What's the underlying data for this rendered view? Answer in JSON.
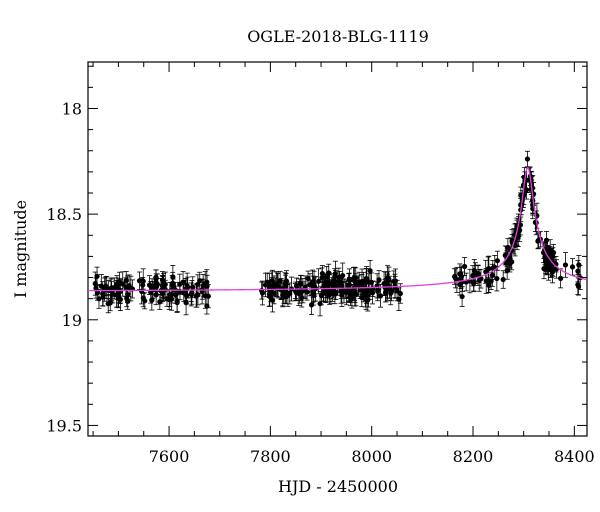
{
  "chart_data": {
    "type": "scatter",
    "title": "OGLE-2018-BLG-1119",
    "xlabel": "HJD - 2450000",
    "ylabel": "I magnitude",
    "xlim": [
      7440,
      8425
    ],
    "ylim": [
      19.55,
      17.78
    ],
    "y_inverted": true,
    "grid": false,
    "x_ticks": [
      "7600",
      "7800",
      "8000",
      "8200",
      "8400"
    ],
    "y_ticks": [
      "18",
      "18.5",
      "19",
      "19.5"
    ],
    "point_color": "#000000",
    "model_color": "#e040e0",
    "model": {
      "baseline": 18.87,
      "peak_time": 8308,
      "peak_mag": 18.28,
      "tau": 28
    },
    "season_ranges": [
      [
        7453,
        7680
      ],
      [
        7782,
        8058
      ],
      [
        8160,
        8422
      ]
    ]
  }
}
